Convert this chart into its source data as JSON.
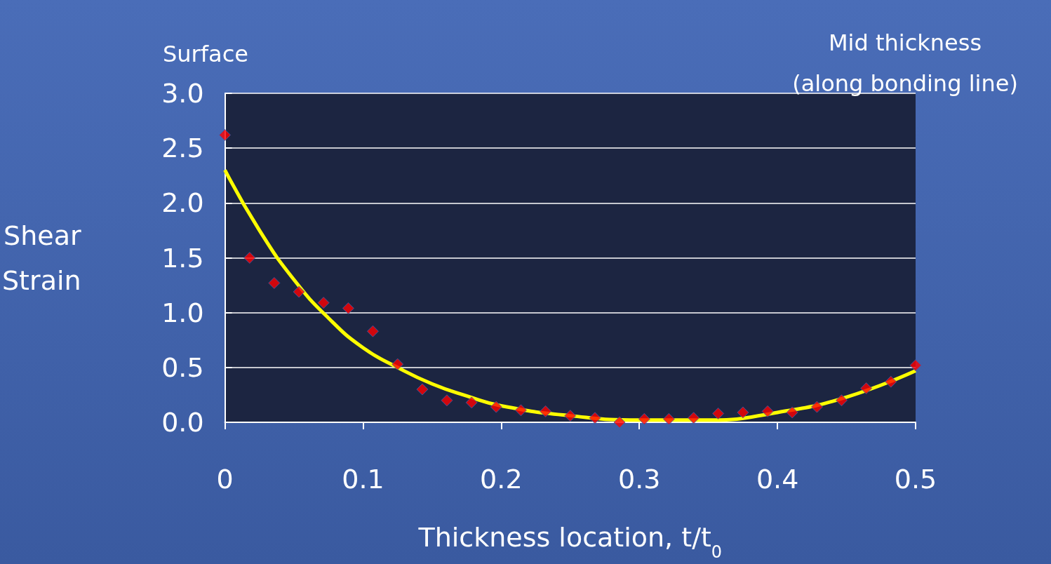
{
  "chart_data": {
    "type": "scatter",
    "xlabel": "Thickness location, t/t$_{0}$",
    "ylabel": "Shear\nStrain",
    "annotations": [
      "Surface",
      "Mid thickness\n(along bonding line)"
    ],
    "x": [
      0,
      0.0179,
      0.0357,
      0.0536,
      0.0714,
      0.0893,
      0.1071,
      0.125,
      0.1429,
      0.1607,
      0.1786,
      0.1964,
      0.2143,
      0.2321,
      0.25,
      0.2679,
      0.2857,
      0.3036,
      0.3214,
      0.3393,
      0.3571,
      0.375,
      0.3929,
      0.4107,
      0.4286,
      0.4464,
      0.4643,
      0.4821,
      0.5
    ],
    "series": [
      {
        "color": "#ff0000",
        "marker": "diamond",
        "values": [
          2.62,
          1.5,
          1.27,
          1.19,
          1.09,
          1.04,
          0.83,
          0.53,
          0.3,
          0.2,
          0.18,
          0.14,
          0.11,
          0.1,
          0.06,
          0.04,
          0.0,
          0.03,
          0.03,
          0.04,
          0.08,
          0.09,
          0.1,
          0.09,
          0.14,
          0.2,
          0.31,
          0.37,
          0.52
        ]
      },
      {
        "type": "line",
        "color": "#ffff00",
        "marker": "none",
        "x": [
          0,
          0.025,
          0.05,
          0.075,
          0.1,
          0.125,
          0.15,
          0.175,
          0.2,
          0.25,
          0.3,
          0.35,
          0.4,
          0.45,
          0.5
        ],
        "values": [
          2.3,
          1.75,
          1.3,
          0.95,
          0.68,
          0.5,
          0.35,
          0.24,
          0.15,
          0.06,
          0.02,
          0.02,
          0.09,
          0.23,
          0.47
        ]
      }
    ],
    "xlim": [
      0,
      0.5
    ],
    "xticks": [
      0,
      0.1,
      0.2,
      0.3,
      0.4,
      0.5
    ],
    "ylim": [
      0,
      3
    ],
    "yticks": [
      {
        "value": 0,
        "label": "0.0"
      },
      {
        "value": 0.5,
        "label": "0.5"
      },
      {
        "value": 1,
        "label": "1.0"
      },
      {
        "value": 1.5,
        "label": "1.5"
      },
      {
        "value": 2,
        "label": "2.0"
      },
      {
        "value": 2.5,
        "label": "2.5"
      },
      {
        "value": 3,
        "label": "3.0"
      }
    ],
    "grid": "y"
  }
}
